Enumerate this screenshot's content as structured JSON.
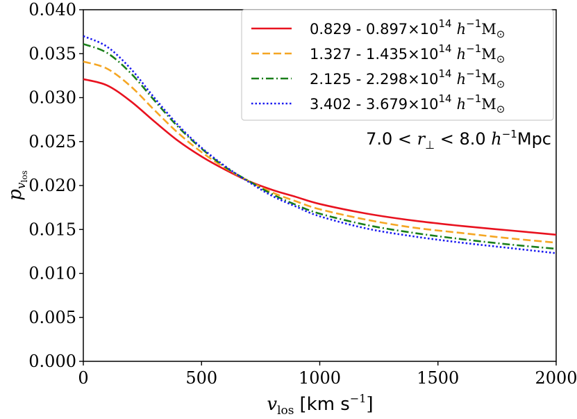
{
  "chart_data": {
    "type": "line",
    "title": "",
    "xlabel": "v_los [km s^-1]",
    "xlabel_main": "v",
    "xlabel_sub": "los",
    "xlabel_units_prefix": "[km s",
    "xlabel_units_exp": "−1",
    "xlabel_units_suffix": "]",
    "ylabel": "p_vlos",
    "ylabel_main": "p",
    "ylabel_sub1": "v",
    "ylabel_sub2": "los",
    "xlim": [
      0,
      2000
    ],
    "ylim": [
      0.0,
      0.04
    ],
    "xticks": [
      0,
      500,
      1000,
      1500,
      2000
    ],
    "xtick_labels": [
      "0",
      "500",
      "1000",
      "1500",
      "2000"
    ],
    "yticks": [
      0.0,
      0.005,
      0.01,
      0.015,
      0.02,
      0.025,
      0.03,
      0.035,
      0.04
    ],
    "ytick_labels": [
      "0.000",
      "0.005",
      "0.010",
      "0.015",
      "0.020",
      "0.025",
      "0.030",
      "0.035",
      "0.040"
    ],
    "grid": false,
    "legend_position": "top-right",
    "annotation": {
      "prefix": "7.0 < ",
      "var": "r",
      "var_sub": "⊥",
      "middle": " < 8.0 ",
      "h": "h",
      "h_exp": "−1",
      "unit": "Mpc"
    },
    "x": [
      0,
      100,
      200,
      300,
      400,
      500,
      600,
      700,
      800,
      900,
      1000,
      1200,
      1400,
      1600,
      1800,
      2000
    ],
    "series": [
      {
        "name": "0.829 - 0.897×10^14 h^-1 M_sun",
        "range_text": "0.829 - 0.897",
        "color": "#e8121f",
        "dash": "solid",
        "values": [
          0.0321,
          0.0314,
          0.0296,
          0.0273,
          0.0251,
          0.0233,
          0.0218,
          0.0205,
          0.0195,
          0.0187,
          0.0179,
          0.0168,
          0.016,
          0.0154,
          0.0149,
          0.0144
        ]
      },
      {
        "name": "1.327 - 1.435×10^14 h^-1 M_sun",
        "range_text": "1.327 - 1.435",
        "color": "#f5a623",
        "dash": "dashed",
        "values": [
          0.0341,
          0.0333,
          0.0313,
          0.0286,
          0.026,
          0.0238,
          0.022,
          0.0205,
          0.0192,
          0.0182,
          0.0173,
          0.0161,
          0.0152,
          0.0146,
          0.014,
          0.0135
        ]
      },
      {
        "name": "2.125 - 2.298×10^14 h^-1 M_sun",
        "range_text": "2.125 - 2.298",
        "color": "#1a7f1a",
        "dash": "dashdot",
        "values": [
          0.0361,
          0.0351,
          0.0328,
          0.0297,
          0.0267,
          0.0242,
          0.0221,
          0.0205,
          0.019,
          0.0178,
          0.0168,
          0.0155,
          0.0146,
          0.0139,
          0.0133,
          0.0128
        ]
      },
      {
        "name": "3.402 - 3.679×10^14 h^-1 M_sun",
        "range_text": "3.402 - 3.679",
        "color": "#1a1af0",
        "dash": "dotted",
        "values": [
          0.037,
          0.0358,
          0.0333,
          0.03,
          0.0269,
          0.0243,
          0.0222,
          0.0204,
          0.0188,
          0.0176,
          0.0165,
          0.0151,
          0.0142,
          0.0135,
          0.0129,
          0.0123
        ]
      }
    ],
    "legend_suffix": {
      "times": "×10",
      "exp": "14",
      "h": "h",
      "h_exp": "−1",
      "mass": "M",
      "mass_sub": "⊙"
    }
  }
}
